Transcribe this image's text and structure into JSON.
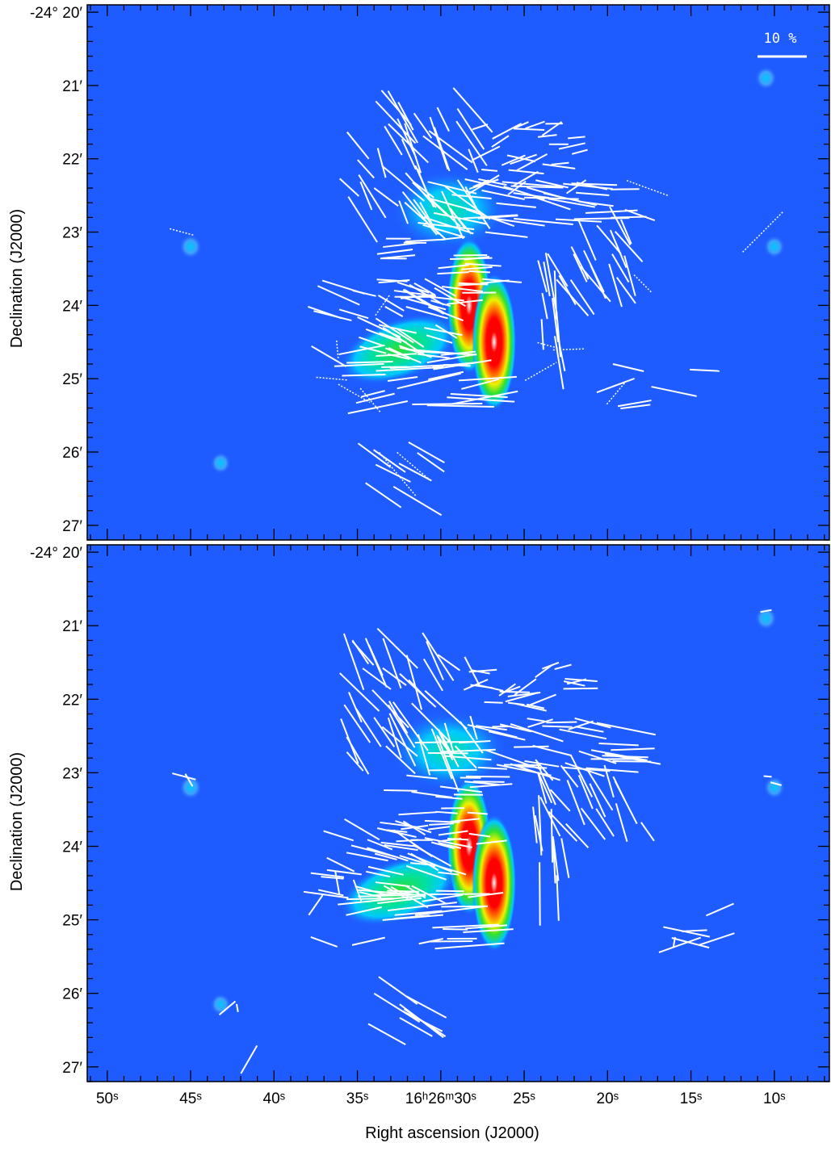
{
  "chart_data": {
    "type": "scatter",
    "colors": {
      "background": "#1f5cff",
      "vector": "#ffffff",
      "axis": "#000000"
    },
    "xlabel": "Right ascension (J2000)",
    "ylabel": "Declination (J2000)",
    "x_axis": {
      "units": "seconds of RA past 16h26m",
      "range": [
        51.2,
        6.7
      ],
      "reversed": true,
      "major_ticks": [
        50,
        45,
        40,
        35,
        30,
        25,
        20,
        15,
        10
      ],
      "tick_labels": [
        "50ˢ",
        "45ˢ",
        "40ˢ",
        "35ˢ",
        "16ʰ26ᵐ30ˢ",
        "25ˢ",
        "20ˢ",
        "15ˢ",
        "10ˢ"
      ],
      "minor_step": 1
    },
    "y_axis": {
      "units": "arcminutes south of -24°",
      "range": [
        19.9,
        27.2
      ],
      "reversed": true,
      "major_ticks": [
        20,
        21,
        22,
        23,
        24,
        25,
        26,
        27
      ],
      "tick_labels": [
        "-24° 20′",
        "21′",
        "22′",
        "23′",
        "24′",
        "25′",
        "26′",
        "27′"
      ],
      "minor_step": 0.2
    },
    "scale_bar": {
      "label": "10 %",
      "value_percent": 10
    },
    "emission": {
      "colormap": [
        "#1f5cff",
        "#00c8ff",
        "#00e0a0",
        "#30e030",
        "#f0f000",
        "#ff8000",
        "#ff0000",
        "#ffffff"
      ],
      "sources": [
        {
          "ra": 28.3,
          "dec": 24.0,
          "peak": 1.0,
          "kind": "core"
        },
        {
          "ra": 26.8,
          "dec": 24.5,
          "peak": 0.92,
          "kind": "core"
        },
        {
          "ra": 32.5,
          "dec": 24.6,
          "peak": 0.45,
          "kind": "ridge"
        },
        {
          "ra": 29.5,
          "dec": 22.7,
          "peak": 0.35,
          "kind": "clump"
        },
        {
          "ra": 45.0,
          "dec": 23.2,
          "peak": 0.3,
          "kind": "point"
        },
        {
          "ra": 10.5,
          "dec": 20.9,
          "peak": 0.25,
          "kind": "point"
        },
        {
          "ra": 10.0,
          "dec": 23.2,
          "peak": 0.22,
          "kind": "point"
        },
        {
          "ra": 43.2,
          "dec": 26.15,
          "peak": 0.15,
          "kind": "point"
        }
      ]
    },
    "panels": [
      {
        "name": "top",
        "has_scale_bar": true,
        "dotted_vectors": true
      },
      {
        "name": "bottom",
        "has_scale_bar": false,
        "dotted_vectors": false
      }
    ]
  }
}
